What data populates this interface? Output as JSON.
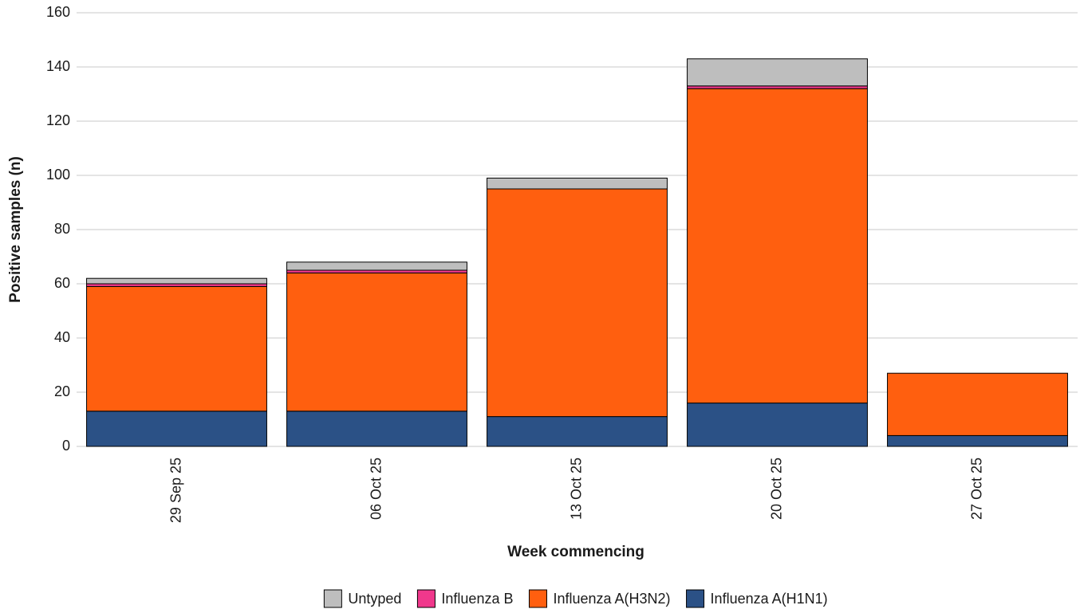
{
  "chart_data": {
    "type": "stacked-bar",
    "x_label": "Week commencing",
    "y_label": "Positive samples (n)",
    "categories": [
      "29 Sep 25",
      "06 Oct 25",
      "13 Oct 25",
      "20 Oct 25",
      "27 Oct 25"
    ],
    "series": [
      {
        "name": "Influenza A(H1N1)",
        "color": "#2b5186",
        "values": [
          13,
          13,
          11,
          16,
          4
        ]
      },
      {
        "name": "Influenza A(H3N2)",
        "color": "#ff5f0f",
        "values": [
          46,
          51,
          84,
          116,
          23
        ]
      },
      {
        "name": "Influenza B",
        "color": "#f0388c",
        "values": [
          1,
          1,
          0,
          1,
          0
        ]
      },
      {
        "name": "Untyped",
        "color": "#bebebe",
        "values": [
          2,
          3,
          4,
          10,
          0
        ]
      }
    ],
    "ylim": [
      0,
      160
    ],
    "yticks": [
      0,
      20,
      40,
      60,
      80,
      100,
      120,
      140,
      160
    ],
    "grid": true,
    "legend": "bottom"
  }
}
